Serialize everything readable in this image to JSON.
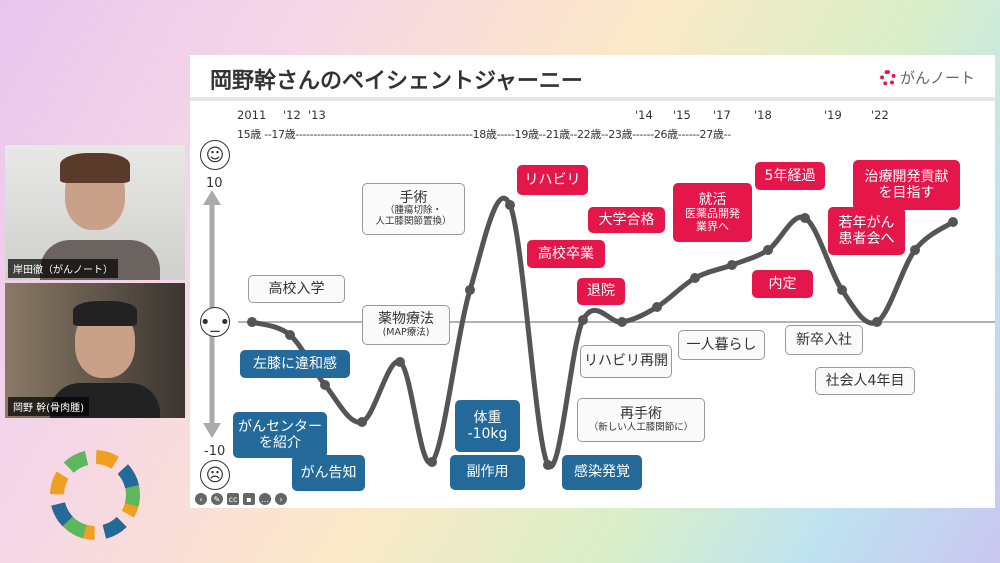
{
  "participants": [
    {
      "name": "岸田徹（がんノート）"
    },
    {
      "name": "岡野 幹(骨肉腫)"
    }
  ],
  "slide": {
    "title": "岡野幹さんのペイシェントジャーニー",
    "brand": "がんノート",
    "years": [
      "2011",
      "'12",
      "'13",
      "'14",
      "'15",
      "'17",
      "'18",
      "'19",
      "'22"
    ],
    "ages_line": "15歳 --17歳-------------------------------------------------18歳-----19歳--21歳--22歳--23歳------26歳------27歳--",
    "y_max": "10",
    "y_min": "-10",
    "labels": {
      "koko_nyugaku": "高校入学",
      "hiza": "左膝に違和感",
      "gan_center": "がんセンター",
      "shokai": "を紹介",
      "kokuchi": "がん告知",
      "yakubutsu": "薬物療法",
      "map": "(MAP療法)",
      "shujutsu": "手術",
      "shujutsu_sub1": "（腫瘍切除・",
      "shujutsu_sub2": "人工膝関節置換）",
      "taiju": "体重",
      "taiju_val": "-10kg",
      "fukusayou": "副作用",
      "rihabiri": "リハビリ",
      "koko_sotsugyo": "高校卒業",
      "taiin": "退院",
      "daigaku": "大学合格",
      "rihabiri_saikai": "リハビリ再開",
      "saishujutsu": "再手術",
      "saishujutsu_sub": "（新しい人工膝関節に）",
      "kansen": "感染発覚",
      "shukatsu": "就活",
      "shukatsu_sub1": "医薬品開発",
      "shukatsu_sub2": "業界へ",
      "hitori": "一人暮らし",
      "naitei": "内定",
      "gonen": "5年経過",
      "shinsotsu": "新卒入社",
      "jakunen1": "若年がん",
      "jakunen2": "患者会へ",
      "shakaijin": "社会人4年目",
      "chiryou1": "治療開発貢献",
      "chiryou2": "を目指す"
    }
  },
  "colors": {
    "red": "#e5174a",
    "blue": "#236a9b",
    "curve": "#555555"
  }
}
